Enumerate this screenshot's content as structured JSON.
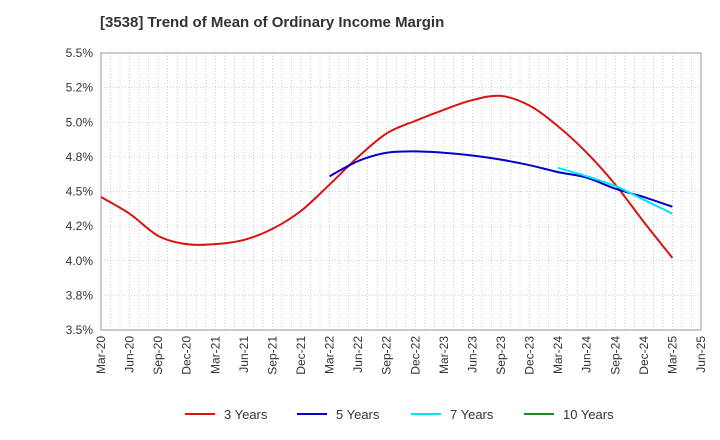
{
  "chart_data": {
    "type": "line",
    "title": "[3538]  Trend of Mean of Ordinary Income Margin",
    "xlabel": "",
    "ylabel": "",
    "x_ticks": [
      "Mar-20",
      "Jun-20",
      "Sep-20",
      "Dec-20",
      "Mar-21",
      "Jun-21",
      "Sep-21",
      "Dec-21",
      "Mar-22",
      "Jun-22",
      "Sep-22",
      "Dec-22",
      "Mar-23",
      "Jun-23",
      "Sep-23",
      "Dec-23",
      "Mar-24",
      "Jun-24",
      "Sep-24",
      "Dec-24",
      "Mar-25",
      "Jun-25"
    ],
    "y_ticks": [
      "3.5%",
      "3.8%",
      "4.0%",
      "4.2%",
      "4.5%",
      "4.8%",
      "5.0%",
      "5.2%",
      "5.5%"
    ],
    "ylim": [
      3.5,
      5.5
    ],
    "grid": true,
    "legend_position": "bottom",
    "series": [
      {
        "name": "3 Years",
        "color": "#dd1111",
        "x": [
          "Mar-20",
          "Jun-20",
          "Sep-20",
          "Dec-20",
          "Mar-21",
          "Jun-21",
          "Sep-21",
          "Dec-21",
          "Mar-22",
          "Jun-22",
          "Sep-22",
          "Dec-22",
          "Mar-23",
          "Jun-23",
          "Sep-23",
          "Dec-23",
          "Mar-24",
          "Jun-24",
          "Sep-24",
          "Dec-24",
          "Mar-25"
        ],
        "values": [
          4.46,
          4.34,
          4.18,
          4.12,
          4.12,
          4.15,
          4.23,
          4.36,
          4.55,
          4.75,
          4.92,
          5.01,
          5.09,
          5.16,
          5.19,
          5.12,
          4.97,
          4.78,
          4.55,
          4.28,
          4.02
        ]
      },
      {
        "name": "5 Years",
        "color": "#0000cc",
        "x": [
          "Mar-22",
          "Jun-22",
          "Sep-22",
          "Dec-22",
          "Mar-23",
          "Jun-23",
          "Sep-23",
          "Dec-23",
          "Mar-24",
          "Jun-24",
          "Sep-24",
          "Dec-24",
          "Mar-25"
        ],
        "values": [
          4.61,
          4.72,
          4.78,
          4.79,
          4.78,
          4.76,
          4.73,
          4.69,
          4.64,
          4.6,
          4.52,
          4.46,
          4.39
        ]
      },
      {
        "name": "7 Years",
        "color": "#00e5ee",
        "x": [
          "Mar-24",
          "Jun-24",
          "Sep-24",
          "Dec-24",
          "Mar-25"
        ],
        "values": [
          4.67,
          4.61,
          4.54,
          4.44,
          4.34
        ]
      },
      {
        "name": "10 Years",
        "color": "#228822",
        "x": [],
        "values": []
      }
    ]
  }
}
